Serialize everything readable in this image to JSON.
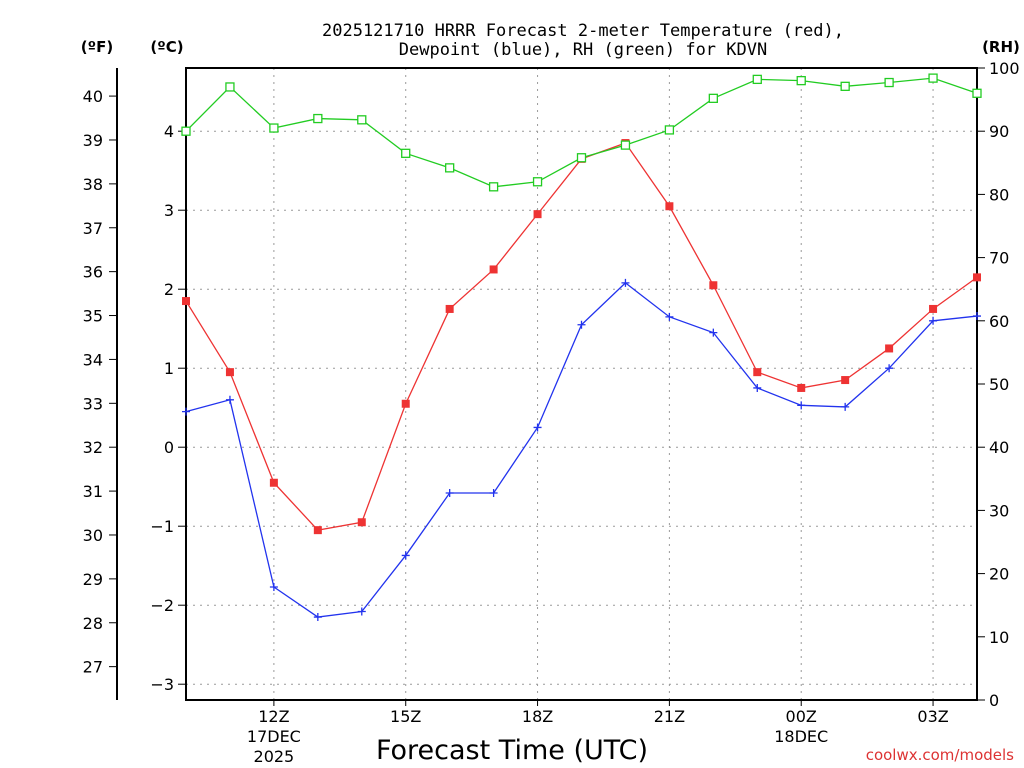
{
  "chart_data": {
    "type": "line",
    "title_line1": "2025121710 HRRR Forecast 2-meter Temperature (red),",
    "title_line2": "Dewpoint (blue), RH (green) for KDVN",
    "xlabel": "Forecast Time (UTC)",
    "unit_f": "(ºF)",
    "unit_c": "(ºC)",
    "unit_rh": "(RH)",
    "credit": "coolwx.com/models",
    "x_range_hours": [
      0,
      18
    ],
    "x_ticks": [
      {
        "h": 2,
        "label": "12Z",
        "sub1": "17DEC",
        "sub2": "2025"
      },
      {
        "h": 5,
        "label": "15Z",
        "sub1": "",
        "sub2": ""
      },
      {
        "h": 8,
        "label": "18Z",
        "sub1": "",
        "sub2": ""
      },
      {
        "h": 11,
        "label": "21Z",
        "sub1": "",
        "sub2": ""
      },
      {
        "h": 14,
        "label": "00Z",
        "sub1": "18DEC",
        "sub2": ""
      },
      {
        "h": 17,
        "label": "03Z",
        "sub1": "",
        "sub2": ""
      }
    ],
    "celsius_range": [
      -3.2,
      4.8
    ],
    "celsius_ticks": [
      "-3",
      "-2",
      "-1",
      "0",
      "1",
      "2",
      "3",
      "4"
    ],
    "fahrenheit_ticks": [
      "27",
      "28",
      "29",
      "30",
      "31",
      "32",
      "33",
      "34",
      "35",
      "36",
      "37",
      "38",
      "39",
      "40"
    ],
    "rh_range": [
      0,
      100
    ],
    "rh_ticks": [
      "0",
      "10",
      "20",
      "30",
      "40",
      "50",
      "60",
      "70",
      "80",
      "90",
      "100"
    ],
    "series": [
      {
        "name": "Temperature",
        "unit": "C",
        "color": "#ee3333",
        "marker": "filled-square",
        "hours": [
          0,
          1,
          2,
          3,
          4,
          5,
          6,
          7,
          8,
          9,
          10,
          11,
          12,
          13,
          14,
          15,
          16,
          17,
          18
        ],
        "values": [
          1.85,
          0.95,
          -0.45,
          -1.05,
          -0.95,
          0.55,
          1.75,
          2.25,
          2.95,
          3.65,
          3.85,
          3.05,
          2.05,
          0.95,
          0.75,
          0.85,
          1.25,
          1.75,
          2.15
        ]
      },
      {
        "name": "Dewpoint",
        "unit": "C",
        "color": "#2233ee",
        "marker": "plus",
        "hours": [
          0,
          1,
          2,
          3,
          4,
          5,
          6,
          7,
          8,
          9,
          10,
          11,
          12,
          13,
          14,
          15,
          16,
          17,
          18
        ],
        "values": [
          0.45,
          0.6,
          -1.77,
          -2.15,
          -2.08,
          -1.37,
          -0.58,
          -0.58,
          0.25,
          1.55,
          2.08,
          1.65,
          1.45,
          0.75,
          0.53,
          0.51,
          1.0,
          1.6,
          1.66
        ]
      },
      {
        "name": "RH",
        "unit": "%",
        "color": "#22cc22",
        "marker": "open-square",
        "hours": [
          0,
          1,
          2,
          3,
          4,
          5,
          6,
          7,
          8,
          9,
          10,
          11,
          12,
          13,
          14,
          15,
          16,
          17,
          18
        ],
        "values": [
          90,
          97,
          90.5,
          92,
          91.8,
          86.5,
          84.2,
          81.2,
          82,
          85.8,
          87.8,
          90.2,
          95.2,
          98.2,
          98,
          97.1,
          97.7,
          98.4,
          96
        ]
      }
    ]
  }
}
